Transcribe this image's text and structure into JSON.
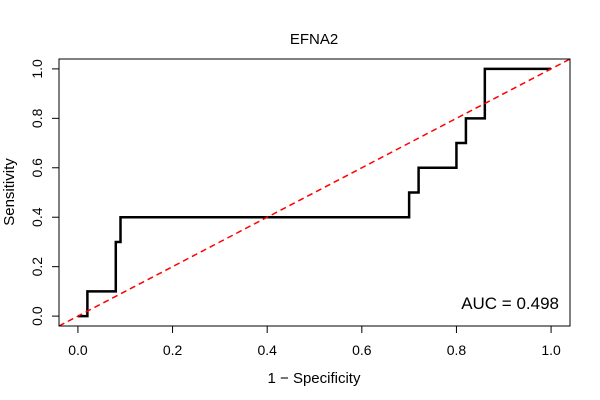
{
  "chart_data": {
    "type": "line",
    "title": "EFNA2",
    "xlabel": "1 − Specificity",
    "ylabel": "Sensitivity",
    "xlim": [
      -0.04,
      1.04
    ],
    "ylim": [
      -0.04,
      1.04
    ],
    "xticks": [
      0.0,
      0.2,
      0.4,
      0.6,
      0.8,
      1.0
    ],
    "yticks": [
      0.0,
      0.2,
      0.4,
      0.6,
      0.8,
      1.0
    ],
    "xtick_labels": [
      "0.0",
      "0.2",
      "0.4",
      "0.6",
      "0.8",
      "1.0"
    ],
    "ytick_labels": [
      "0.0",
      "0.2",
      "0.4",
      "0.6",
      "0.8",
      "1.0"
    ],
    "series": [
      {
        "name": "ROC curve",
        "color": "#000000",
        "style": "step",
        "x": [
          0.0,
          0.02,
          0.02,
          0.08,
          0.08,
          0.09,
          0.09,
          0.7,
          0.7,
          0.72,
          0.72,
          0.8,
          0.8,
          0.82,
          0.82,
          0.86,
          0.86,
          1.0
        ],
        "y": [
          0.0,
          0.0,
          0.1,
          0.1,
          0.3,
          0.3,
          0.4,
          0.4,
          0.5,
          0.5,
          0.6,
          0.6,
          0.7,
          0.7,
          0.8,
          0.8,
          1.0,
          1.0
        ]
      },
      {
        "name": "Reference diagonal",
        "color": "#ff0000",
        "style": "dashed",
        "x": [
          -0.04,
          1.04
        ],
        "y": [
          -0.04,
          1.04
        ]
      }
    ],
    "annotation": "AUC = 0.498"
  }
}
